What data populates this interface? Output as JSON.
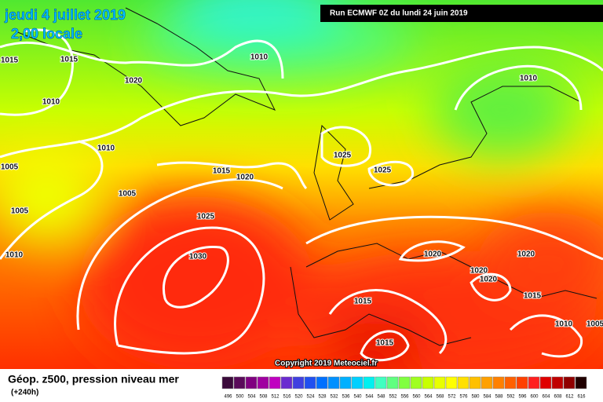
{
  "header": {
    "date": "jeudi 4 juillet 2019",
    "time": "2,00 locale",
    "run": "Run ECMWF 0Z du lundi 24 juin 2019"
  },
  "isobar_labels": [
    "1015",
    "1015",
    "1010",
    "1020",
    "1010",
    "1010",
    "1010",
    "1005",
    "1015",
    "1020",
    "1025",
    "1025",
    "1005",
    "1005",
    "1025",
    "1010",
    "1030",
    "1020",
    "1020",
    "1020",
    "1020",
    "1015",
    "1015",
    "1010",
    "1005",
    "1015"
  ],
  "copyright": "Copyright 2019 Meteociel.fr",
  "footer": {
    "title": "Géop. z500, pression niveau mer",
    "lead": "(+240h)"
  },
  "scale": [
    {
      "label": "496",
      "color": "#3a0a3a"
    },
    {
      "label": "500",
      "color": "#5a0a5a"
    },
    {
      "label": "504",
      "color": "#800080"
    },
    {
      "label": "508",
      "color": "#a000a0"
    },
    {
      "label": "512",
      "color": "#c000c0"
    },
    {
      "label": "516",
      "color": "#6a2ad0"
    },
    {
      "label": "520",
      "color": "#4040e0"
    },
    {
      "label": "524",
      "color": "#2050f0"
    },
    {
      "label": "528",
      "color": "#0070ff"
    },
    {
      "label": "532",
      "color": "#0090ff"
    },
    {
      "label": "536",
      "color": "#00b0ff"
    },
    {
      "label": "540",
      "color": "#00d0ff"
    },
    {
      "label": "544",
      "color": "#00f0f0"
    },
    {
      "label": "548",
      "color": "#40ffc0"
    },
    {
      "label": "552",
      "color": "#60ff80"
    },
    {
      "label": "556",
      "color": "#80ff40"
    },
    {
      "label": "560",
      "color": "#a0ff20"
    },
    {
      "label": "564",
      "color": "#c8ff00"
    },
    {
      "label": "568",
      "color": "#e8ff00"
    },
    {
      "label": "572",
      "color": "#ffff00"
    },
    {
      "label": "576",
      "color": "#ffe000"
    },
    {
      "label": "580",
      "color": "#ffc000"
    },
    {
      "label": "584",
      "color": "#ffa000"
    },
    {
      "label": "588",
      "color": "#ff8000"
    },
    {
      "label": "592",
      "color": "#ff6000"
    },
    {
      "label": "596",
      "color": "#ff4000"
    },
    {
      "label": "600",
      "color": "#ff2020"
    },
    {
      "label": "604",
      "color": "#e00000"
    },
    {
      "label": "608",
      "color": "#c00000"
    },
    {
      "label": "612",
      "color": "#900000"
    },
    {
      "label": "616",
      "color": "#200000"
    }
  ]
}
